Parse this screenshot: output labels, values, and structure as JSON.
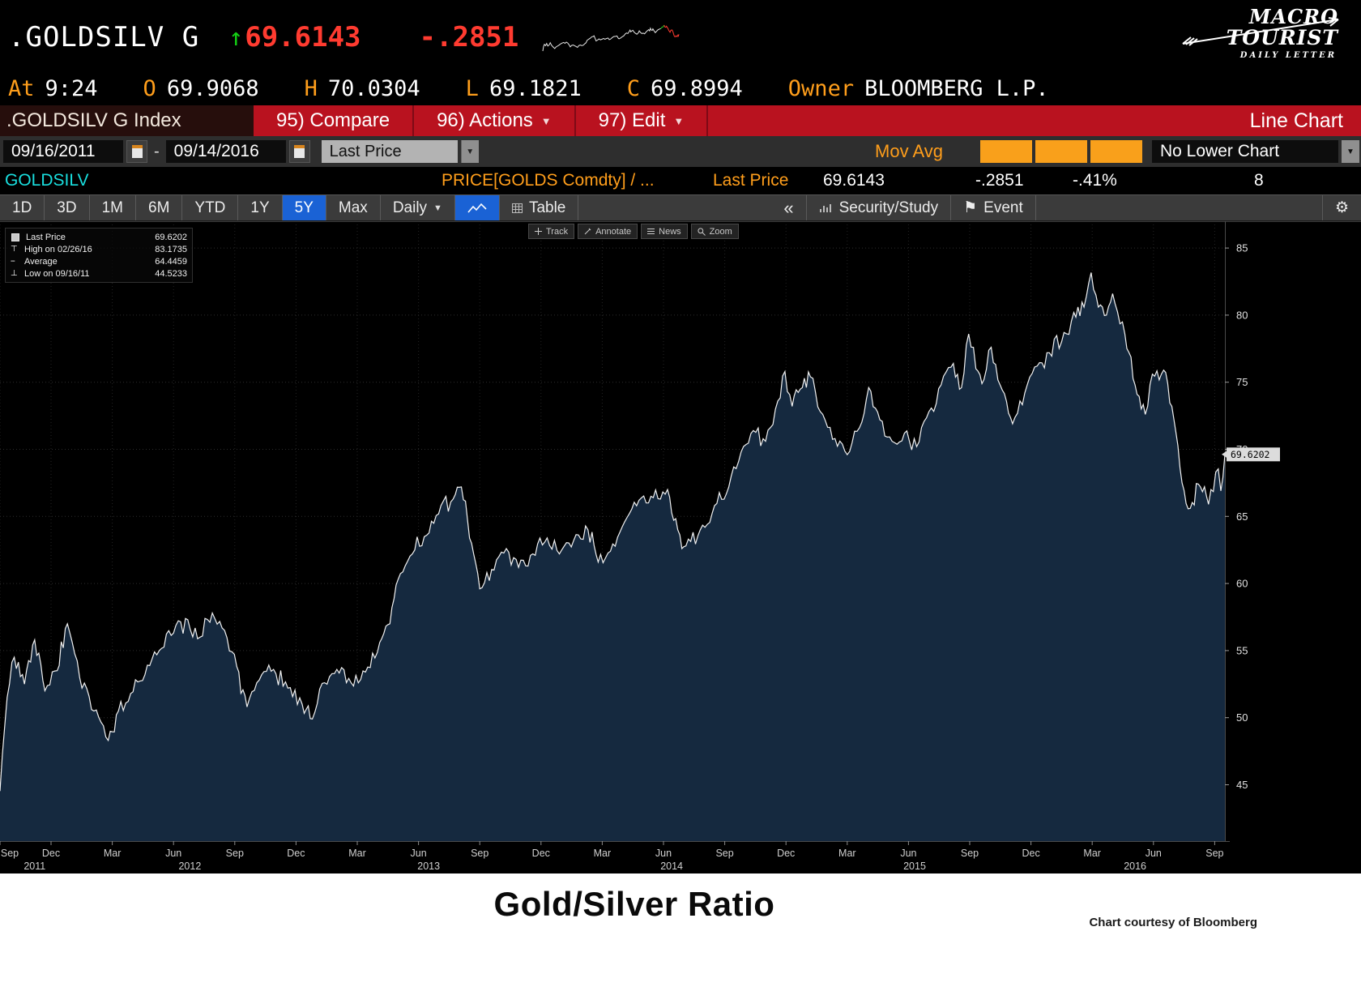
{
  "icons": {
    "up_arrow": "↑",
    "caret_down": "▼",
    "collapse": "«",
    "gear": "⚙",
    "flag": "⚑"
  },
  "theme": {
    "amber": "#ff9e1b",
    "red": "#ff3b30",
    "green": "#14d114",
    "cyan": "#19dede",
    "tab_blue": "#1a62d5",
    "toolbar_red": "#b9121f"
  },
  "header": {
    "ticker": ".GOLDSILV G",
    "price": "69.6143",
    "change": "-.2851",
    "time_label": "At",
    "time": "9:24",
    "ohlc": [
      {
        "label": "O",
        "value": "69.9068"
      },
      {
        "label": "H",
        "value": "70.0304"
      },
      {
        "label": "L",
        "value": "69.1821"
      },
      {
        "label": "C",
        "value": "69.8994"
      }
    ],
    "owner_label": "Owner",
    "owner": "BLOOMBERG L.P.",
    "logo": {
      "line1": "MACRO",
      "line2": "TOURIST",
      "sub": "DAILY LETTER"
    }
  },
  "toolbar": {
    "index_label": ".GOLDSILV G Index",
    "buttons": [
      "95) Compare",
      "96) Actions",
      "97) Edit"
    ],
    "right_label": "Line Chart"
  },
  "settings": {
    "date_from": "09/16/2011",
    "range_sep": "-",
    "date_to": "09/14/2016",
    "price_type": "Last Price",
    "mov_avg_label": "Mov Avg",
    "lower_chart": "No Lower Chart"
  },
  "ticker_row": {
    "symbol": "GOLDSILV",
    "formula": "PRICE[GOLDS Comdty] / ...",
    "last_price_label": "Last Price",
    "last_price": "69.6143",
    "change": "-.2851",
    "change_pct": "-.41%",
    "right_digit": "8"
  },
  "tabs": {
    "ranges": [
      "1D",
      "3D",
      "1M",
      "6M",
      "YTD",
      "1Y",
      "5Y",
      "Max"
    ],
    "selected_range": "5Y",
    "period": "Daily",
    "table_label": "Table",
    "security_study": "Security/Study",
    "event": "Event"
  },
  "chart_tools": [
    "Track",
    "Annotate",
    "News",
    "Zoom"
  ],
  "legend": {
    "items": [
      {
        "marker": "square",
        "label": "Last Price",
        "value": "69.6202"
      },
      {
        "marker": "high",
        "label": "High on 02/26/16",
        "value": "83.1735"
      },
      {
        "marker": "avg",
        "label": "Average",
        "value": "64.4459"
      },
      {
        "marker": "low",
        "label": "Low on 09/16/11",
        "value": "44.5233"
      }
    ]
  },
  "footer": {
    "title": "Gold/Silver Ratio",
    "credit": "Chart courtesy of Bloomberg"
  },
  "chart_data": {
    "type": "area",
    "title": "Gold/Silver Ratio",
    "series_name": "Last Price",
    "x_unit": "months since 2011-09-16",
    "x_range_dates": [
      "09/16/2011",
      "09/14/2016"
    ],
    "ylim": [
      40.8,
      87.0
    ],
    "yticks": [
      45,
      50,
      55,
      60,
      65,
      70,
      75,
      80,
      85
    ],
    "stats": {
      "last": 69.6202,
      "high": 83.1735,
      "high_date": "02/26/16",
      "average": 64.4459,
      "low": 44.5233,
      "low_date": "09/16/11"
    },
    "colors": {
      "line": "#f2f2f2",
      "fill": "#15293f",
      "grid": "#2d2d2d"
    },
    "anchors": [
      [
        0,
        44.52
      ],
      [
        0.35,
        51.5
      ],
      [
        0.7,
        54.5
      ],
      [
        1.2,
        52.5
      ],
      [
        1.7,
        55.8
      ],
      [
        2.2,
        52.0
      ],
      [
        2.8,
        53.5
      ],
      [
        3.3,
        57.0
      ],
      [
        3.9,
        53.0
      ],
      [
        4.6,
        50.5
      ],
      [
        5.3,
        48.3
      ],
      [
        5.8,
        50.5
      ],
      [
        6.4,
        51.8
      ],
      [
        7.1,
        53.2
      ],
      [
        7.8,
        55.0
      ],
      [
        8.5,
        56.3
      ],
      [
        9.2,
        57.3
      ],
      [
        9.8,
        56.0
      ],
      [
        10.4,
        57.8
      ],
      [
        11.0,
        56.5
      ],
      [
        11.6,
        53.8
      ],
      [
        12.1,
        50.8
      ],
      [
        12.7,
        52.8
      ],
      [
        13.4,
        53.6
      ],
      [
        14.1,
        52.2
      ],
      [
        14.8,
        51.0
      ],
      [
        15.3,
        49.9
      ],
      [
        15.9,
        52.6
      ],
      [
        16.5,
        53.6
      ],
      [
        17.2,
        52.6
      ],
      [
        17.9,
        53.4
      ],
      [
        18.6,
        55.6
      ],
      [
        19.1,
        57.0
      ],
      [
        19.5,
        60.3
      ],
      [
        20.2,
        62.2
      ],
      [
        20.9,
        63.6
      ],
      [
        21.6,
        65.8
      ],
      [
        22.2,
        66.3
      ],
      [
        22.6,
        67.2
      ],
      [
        23.1,
        63.0
      ],
      [
        23.5,
        59.6
      ],
      [
        24.2,
        61.0
      ],
      [
        24.8,
        62.6
      ],
      [
        25.4,
        61.2
      ],
      [
        26.1,
        62.2
      ],
      [
        26.8,
        63.4
      ],
      [
        27.4,
        62.2
      ],
      [
        28.1,
        63.2
      ],
      [
        28.8,
        64.0
      ],
      [
        29.3,
        61.6
      ],
      [
        29.9,
        62.4
      ],
      [
        30.6,
        64.6
      ],
      [
        31.3,
        66.2
      ],
      [
        32.0,
        66.4
      ],
      [
        32.7,
        67.0
      ],
      [
        33.2,
        64.0
      ],
      [
        33.6,
        62.8
      ],
      [
        34.3,
        64.0
      ],
      [
        35.0,
        65.8
      ],
      [
        35.7,
        67.2
      ],
      [
        36.3,
        69.8
      ],
      [
        36.9,
        71.4
      ],
      [
        37.5,
        70.6
      ],
      [
        38.1,
        73.6
      ],
      [
        38.45,
        75.8
      ],
      [
        38.8,
        73.2
      ],
      [
        39.3,
        74.6
      ],
      [
        39.7,
        75.4
      ],
      [
        40.3,
        72.6
      ],
      [
        40.9,
        70.8
      ],
      [
        41.5,
        69.6
      ],
      [
        42.1,
        71.6
      ],
      [
        42.55,
        74.6
      ],
      [
        43.1,
        72.2
      ],
      [
        43.7,
        70.6
      ],
      [
        44.3,
        71.2
      ],
      [
        44.9,
        70.2
      ],
      [
        45.5,
        72.8
      ],
      [
        46.1,
        74.8
      ],
      [
        46.7,
        76.4
      ],
      [
        47.1,
        74.6
      ],
      [
        47.45,
        78.6
      ],
      [
        47.8,
        76.0
      ],
      [
        48.2,
        75.2
      ],
      [
        48.55,
        77.6
      ],
      [
        49.1,
        74.4
      ],
      [
        49.6,
        71.9
      ],
      [
        50.2,
        74.2
      ],
      [
        50.8,
        76.2
      ],
      [
        51.4,
        77.2
      ],
      [
        52.0,
        78.0
      ],
      [
        52.6,
        80.2
      ],
      [
        53.1,
        80.6
      ],
      [
        53.45,
        83.17
      ],
      [
        53.8,
        80.6
      ],
      [
        54.2,
        80.0
      ],
      [
        54.5,
        81.6
      ],
      [
        55.1,
        78.6
      ],
      [
        55.6,
        74.8
      ],
      [
        56.1,
        72.6
      ],
      [
        56.45,
        75.6
      ],
      [
        57.0,
        75.9
      ],
      [
        57.4,
        73.2
      ],
      [
        57.9,
        67.5
      ],
      [
        58.3,
        65.6
      ],
      [
        58.8,
        67.2
      ],
      [
        59.2,
        65.9
      ],
      [
        59.55,
        68.3
      ],
      [
        59.8,
        66.9
      ],
      [
        60,
        69.62
      ]
    ],
    "month_ticks": [
      {
        "t": 0,
        "m": "Sep"
      },
      {
        "t": 2.5,
        "m": "Dec"
      },
      {
        "t": 5.5,
        "m": "Mar"
      },
      {
        "t": 8.5,
        "m": "Jun"
      },
      {
        "t": 11.5,
        "m": "Sep"
      },
      {
        "t": 14.5,
        "m": "Dec"
      },
      {
        "t": 17.5,
        "m": "Mar"
      },
      {
        "t": 20.5,
        "m": "Jun"
      },
      {
        "t": 23.5,
        "m": "Sep"
      },
      {
        "t": 26.5,
        "m": "Dec"
      },
      {
        "t": 29.5,
        "m": "Mar"
      },
      {
        "t": 32.5,
        "m": "Jun"
      },
      {
        "t": 35.5,
        "m": "Sep"
      },
      {
        "t": 38.5,
        "m": "Dec"
      },
      {
        "t": 41.5,
        "m": "Mar"
      },
      {
        "t": 44.5,
        "m": "Jun"
      },
      {
        "t": 47.5,
        "m": "Sep"
      },
      {
        "t": 50.5,
        "m": "Dec"
      },
      {
        "t": 53.5,
        "m": "Mar"
      },
      {
        "t": 56.5,
        "m": "Jun"
      },
      {
        "t": 59.5,
        "m": "Sep"
      }
    ],
    "year_labels": [
      {
        "t": 1.7,
        "y": "2011"
      },
      {
        "t": 9.3,
        "y": "2012"
      },
      {
        "t": 21.0,
        "y": "2013"
      },
      {
        "t": 32.9,
        "y": "2014"
      },
      {
        "t": 44.8,
        "y": "2015"
      },
      {
        "t": 55.6,
        "y": "2016"
      }
    ]
  }
}
